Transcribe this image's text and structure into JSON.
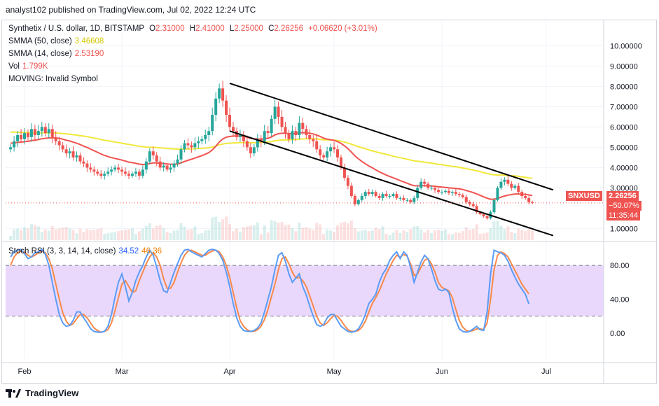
{
  "header": {
    "text": "analyst102 published on TradingView.com, Jul 02, 2022 12:24 UTC"
  },
  "legend": {
    "symbol": "Synthetix / U.S. dollar, 1D, BITSTAMP",
    "o_label": "O",
    "o": "2.31000",
    "h_label": "H",
    "h": "2.41000",
    "l_label": "L",
    "l": "2.25000",
    "c_label": "C",
    "c": "2.26256",
    "change": "+0.06620 (+3.01%)",
    "smma50_label": "SMMA (50, close)",
    "smma50": "3.46608",
    "smma14_label": "SMMA (14, close)",
    "smma14": "2.53190",
    "vol_label": "Vol",
    "vol": "1.799K",
    "moving": "MOVING: Invalid Symbol",
    "rsi_label": "Stoch RSI (3, 3, 14, 14, close)",
    "rsi_k": "34.52",
    "rsi_d": "46.36"
  },
  "price_tag": {
    "symbol": "SNXUSD",
    "price": "2.26256",
    "change": "−50.07%",
    "timer": "11:35:44"
  },
  "footer": {
    "brand": "TradingView"
  },
  "colors": {
    "up": "#26a69a",
    "down": "#ef5350",
    "smma50": "#f2e83a",
    "smma14": "#f0524f",
    "k": "#5b9cf6",
    "d": "#f7894a",
    "band": "#e1c7fb"
  },
  "chart_data": [
    {
      "type": "candlestick",
      "title": "Synthetix / U.S. dollar, 1D, BITSTAMP",
      "ylim": [
        0.6,
        10.6
      ],
      "y_ticks": [
        "10.00000",
        "9.00000",
        "8.00000",
        "7.00000",
        "6.00000",
        "5.00000",
        "4.00000",
        "3.00000",
        "1.00000"
      ],
      "x_ticks": [
        "Feb",
        "Mar",
        "Apr",
        "May",
        "Jun",
        "Jul"
      ],
      "x_tick_days": [
        0,
        28,
        59,
        89,
        120,
        150
      ],
      "start_offset_days": -4,
      "close": [
        5.0,
        5.3,
        5.6,
        5.4,
        5.7,
        5.5,
        5.9,
        5.6,
        5.8,
        6.0,
        5.7,
        5.9,
        5.5,
        5.3,
        5.1,
        4.9,
        4.7,
        4.8,
        4.5,
        4.6,
        4.3,
        4.2,
        4.0,
        3.9,
        3.8,
        3.7,
        3.6,
        3.7,
        3.8,
        3.9,
        4.0,
        3.9,
        3.8,
        3.7,
        3.6,
        3.7,
        3.8,
        3.6,
        3.9,
        4.3,
        4.8,
        4.6,
        4.3,
        4.0,
        4.1,
        3.9,
        4.0,
        4.2,
        4.4,
        4.9,
        5.2,
        5.1,
        5.0,
        5.2,
        5.3,
        5.4,
        5.6,
        5.8,
        6.6,
        7.4,
        7.9,
        7.3,
        6.6,
        6.0,
        5.8,
        5.5,
        5.6,
        5.3,
        5.0,
        4.7,
        5.0,
        5.4,
        5.3,
        5.8,
        5.7,
        6.4,
        7.0,
        6.5,
        6.0,
        5.7,
        5.4,
        5.8,
        5.6,
        6.2,
        5.9,
        5.6,
        5.4,
        5.3,
        4.9,
        4.6,
        4.5,
        4.8,
        5.0,
        4.9,
        4.5,
        4.0,
        3.5,
        3.1,
        2.6,
        2.2,
        2.4,
        2.6,
        2.8,
        2.7,
        2.8,
        2.6,
        2.5,
        2.7,
        2.6,
        2.6,
        2.7,
        2.5,
        2.5,
        2.4,
        2.4,
        2.3,
        2.5,
        3.0,
        3.3,
        3.2,
        3.0,
        3.0,
        2.9,
        2.8,
        2.8,
        2.85,
        2.75,
        2.8,
        2.7,
        2.65,
        2.55,
        2.3,
        2.2,
        2.1,
        1.8,
        1.7,
        1.6,
        1.5,
        1.8,
        2.4,
        3.0,
        3.3,
        3.4,
        3.2,
        3.0,
        3.1,
        2.8,
        2.6,
        2.5,
        2.3,
        2.26
      ],
      "smma50": [
        5.75,
        5.75,
        5.74,
        5.73,
        5.73,
        5.72,
        5.72,
        5.71,
        5.71,
        5.71,
        5.71,
        5.71,
        5.71,
        5.7,
        5.69,
        5.68,
        5.66,
        5.64,
        5.62,
        5.6,
        5.57,
        5.55,
        5.52,
        5.49,
        5.45,
        5.42,
        5.38,
        5.35,
        5.32,
        5.29,
        5.26,
        5.23,
        5.2,
        5.17,
        5.14,
        5.11,
        5.08,
        5.05,
        5.03,
        5.01,
        5.0,
        5.0,
        4.99,
        4.97,
        4.96,
        4.94,
        4.93,
        4.92,
        4.91,
        4.91,
        4.92,
        4.92,
        4.92,
        4.93,
        4.94,
        4.95,
        4.96,
        4.98,
        5.01,
        5.06,
        5.12,
        5.16,
        5.19,
        5.2,
        5.21,
        5.22,
        5.23,
        5.23,
        5.23,
        5.22,
        5.22,
        5.23,
        5.24,
        5.25,
        5.26,
        5.28,
        5.32,
        5.34,
        5.36,
        5.36,
        5.37,
        5.38,
        5.39,
        5.4,
        5.41,
        5.42,
        5.42,
        5.42,
        5.41,
        5.39,
        5.37,
        5.37,
        5.36,
        5.35,
        5.33,
        5.3,
        5.26,
        5.21,
        5.15,
        5.09,
        5.03,
        4.98,
        4.93,
        4.87,
        4.82,
        4.78,
        4.73,
        4.69,
        4.65,
        4.61,
        4.56,
        4.52,
        4.49,
        4.45,
        4.41,
        4.37,
        4.33,
        4.31,
        4.29,
        4.27,
        4.24,
        4.22,
        4.19,
        4.16,
        4.14,
        4.11,
        4.09,
        4.06,
        4.04,
        4.01,
        3.98,
        3.95,
        3.91,
        3.88,
        3.84,
        3.8,
        3.75,
        3.71,
        3.67,
        3.64,
        3.63,
        3.63,
        3.62,
        3.61,
        3.6,
        3.59,
        3.57,
        3.54,
        3.52,
        3.49,
        3.47
      ],
      "smma14": [
        5.2,
        5.21,
        5.24,
        5.25,
        5.28,
        5.29,
        5.33,
        5.35,
        5.38,
        5.42,
        5.44,
        5.46,
        5.47,
        5.46,
        5.44,
        5.4,
        5.35,
        5.31,
        5.25,
        5.2,
        5.13,
        5.06,
        4.99,
        4.91,
        4.83,
        4.75,
        4.67,
        4.6,
        4.54,
        4.49,
        4.45,
        4.41,
        4.37,
        4.32,
        4.27,
        4.24,
        4.21,
        4.17,
        4.15,
        4.16,
        4.2,
        4.23,
        4.23,
        4.21,
        4.2,
        4.18,
        4.16,
        4.16,
        4.18,
        4.23,
        4.3,
        4.36,
        4.41,
        4.47,
        4.53,
        4.59,
        4.66,
        4.74,
        4.87,
        5.05,
        5.26,
        5.41,
        5.5,
        5.53,
        5.55,
        5.55,
        5.55,
        5.53,
        5.5,
        5.44,
        5.41,
        5.41,
        5.4,
        5.43,
        5.44,
        5.51,
        5.61,
        5.67,
        5.69,
        5.69,
        5.67,
        5.68,
        5.67,
        5.71,
        5.72,
        5.71,
        5.69,
        5.66,
        5.6,
        5.53,
        5.45,
        5.4,
        5.37,
        5.34,
        5.28,
        5.19,
        5.07,
        4.93,
        4.76,
        4.58,
        4.43,
        4.3,
        4.19,
        4.08,
        3.99,
        3.89,
        3.79,
        3.71,
        3.63,
        3.56,
        3.5,
        3.43,
        3.36,
        3.29,
        3.23,
        3.16,
        3.11,
        3.1,
        3.11,
        3.11,
        3.1,
        3.09,
        3.08,
        3.06,
        3.04,
        3.02,
        3.0,
        2.99,
        2.97,
        2.95,
        2.92,
        2.87,
        2.82,
        2.77,
        2.7,
        2.63,
        2.56,
        2.49,
        2.44,
        2.44,
        2.48,
        2.54,
        2.6,
        2.64,
        2.67,
        2.7,
        2.7,
        2.69,
        2.68,
        2.65,
        2.62
      ],
      "channel_upper": [
        [
          59,
          8.15
        ],
        [
          152,
          2.9
        ]
      ],
      "channel_lower": [
        [
          59,
          5.8
        ],
        [
          152,
          0.65
        ]
      ]
    },
    {
      "type": "line",
      "title": "Stoch RSI (3, 3, 14, 14, close)",
      "ylim": [
        -20,
        100
      ],
      "y_ticks": [
        "80.00",
        "40.00",
        "0.00"
      ],
      "band": [
        20,
        80
      ],
      "series": [
        {
          "name": "K",
          "values": [
            90,
            96,
            98,
            99,
            94,
            88,
            90,
            95,
            96,
            99,
            93,
            80,
            60,
            40,
            22,
            12,
            8,
            9,
            15,
            25,
            25,
            18,
            12,
            5,
            2,
            1,
            1,
            2,
            8,
            22,
            42,
            60,
            70,
            55,
            38,
            48,
            62,
            72,
            80,
            90,
            98,
            92,
            78,
            62,
            50,
            48,
            60,
            72,
            82,
            92,
            98,
            99,
            96,
            94,
            92,
            90,
            94,
            98,
            99,
            98,
            94,
            86,
            72,
            55,
            35,
            18,
            8,
            3,
            2,
            2,
            3,
            6,
            12,
            25,
            40,
            55,
            75,
            92,
            95,
            85,
            70,
            60,
            65,
            70,
            55,
            45,
            32,
            20,
            10,
            8,
            10,
            18,
            22,
            22,
            15,
            8,
            5,
            2,
            1,
            2,
            5,
            12,
            22,
            35,
            40,
            46,
            60,
            70,
            76,
            86,
            92,
            96,
            88,
            96,
            92,
            78,
            60,
            72,
            84,
            92,
            88,
            76,
            62,
            52,
            50,
            52,
            48,
            30,
            15,
            5,
            2,
            1,
            2,
            5,
            8,
            4,
            3,
            25,
            70,
            98,
            96,
            95,
            92,
            85,
            75,
            66,
            58,
            52,
            46,
            34.52
          ]
        },
        {
          "name": "D",
          "values": [
            80,
            90,
            95,
            97,
            96,
            92,
            90,
            92,
            95,
            97,
            95,
            88,
            76,
            58,
            40,
            24,
            14,
            9,
            11,
            17,
            22,
            22,
            18,
            12,
            6,
            3,
            1,
            2,
            4,
            12,
            26,
            42,
            58,
            62,
            55,
            48,
            50,
            62,
            72,
            82,
            90,
            95,
            90,
            80,
            64,
            53,
            53,
            60,
            72,
            83,
            92,
            97,
            98,
            96,
            94,
            92,
            92,
            95,
            97,
            98,
            96,
            90,
            80,
            66,
            48,
            30,
            15,
            8,
            4,
            2,
            2,
            4,
            8,
            16,
            28,
            43,
            58,
            75,
            88,
            90,
            82,
            72,
            65,
            66,
            62,
            55,
            44,
            32,
            20,
            12,
            9,
            12,
            17,
            21,
            20,
            15,
            9,
            4,
            2,
            2,
            3,
            7,
            14,
            25,
            35,
            42,
            50,
            60,
            70,
            78,
            86,
            92,
            90,
            93,
            91,
            82,
            68,
            70,
            78,
            86,
            88,
            82,
            72,
            60,
            54,
            52,
            50,
            42,
            28,
            15,
            7,
            3,
            2,
            3,
            5,
            5,
            4,
            12,
            40,
            75,
            92,
            96,
            94,
            90,
            82,
            74,
            66,
            58,
            52,
            46.36
          ]
        }
      ]
    }
  ]
}
